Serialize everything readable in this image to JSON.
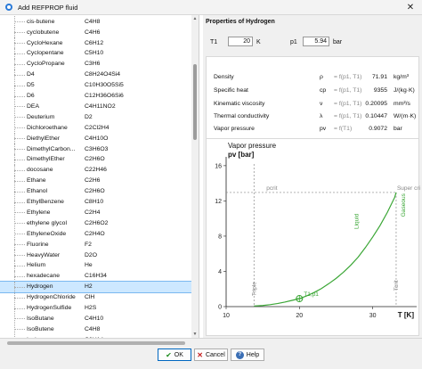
{
  "window": {
    "title": "Add REFPROP fluid",
    "close_glyph": "✕"
  },
  "fluids": [
    {
      "name": "cis-butene",
      "formula": "C4H8"
    },
    {
      "name": "cyclobutene",
      "formula": "C4H6"
    },
    {
      "name": "CycloHexane",
      "formula": "C6H12"
    },
    {
      "name": "Cyclopentane",
      "formula": "C5H10"
    },
    {
      "name": "CycloPropane",
      "formula": "C3H6"
    },
    {
      "name": "D4",
      "formula": "C8H24O4Si4"
    },
    {
      "name": "D5",
      "formula": "C10H30O5Si5"
    },
    {
      "name": "D6",
      "formula": "C12H36O6Si6"
    },
    {
      "name": "DEA",
      "formula": "C4H11NO2"
    },
    {
      "name": "Deuterium",
      "formula": "D2"
    },
    {
      "name": "Dichloroethane",
      "formula": "C2Cl2H4"
    },
    {
      "name": "DiethylEther",
      "formula": "C4H10O"
    },
    {
      "name": "DimethylCarbon...",
      "formula": "C3H6O3"
    },
    {
      "name": "DimethylEther",
      "formula": "C2H6O"
    },
    {
      "name": "docosane",
      "formula": "C22H46"
    },
    {
      "name": "Ethane",
      "formula": "C2H6"
    },
    {
      "name": "Ethanol",
      "formula": "C2H6O"
    },
    {
      "name": "EthylBenzene",
      "formula": "C8H10"
    },
    {
      "name": "Ethylene",
      "formula": "C2H4"
    },
    {
      "name": "ethylene glycol",
      "formula": "C2H6O2"
    },
    {
      "name": "EthyleneOxide",
      "formula": "C2H4O"
    },
    {
      "name": "Fluorine",
      "formula": "F2"
    },
    {
      "name": "HeavyWater",
      "formula": "D2O"
    },
    {
      "name": "Helium",
      "formula": "He"
    },
    {
      "name": "hexadecane",
      "formula": "C16H34"
    },
    {
      "name": "Hydrogen",
      "formula": "H2"
    },
    {
      "name": "HydrogenChloride",
      "formula": "ClH"
    },
    {
      "name": "HydrogenSulfide",
      "formula": "H2S"
    },
    {
      "name": "IsoButane",
      "formula": "C4H10"
    },
    {
      "name": "IsoButene",
      "formula": "C4H8"
    },
    {
      "name": "Isohexane",
      "formula": "C6H14"
    }
  ],
  "selected_fluid": "Hydrogen",
  "properties": {
    "title": "Properties of Hydrogen",
    "t1": {
      "label": "T1",
      "value": "20",
      "unit": "K"
    },
    "p1": {
      "label": "p1",
      "value": "5.94",
      "unit": "bar"
    },
    "rows": [
      {
        "name": "Density",
        "symbol": "ρ",
        "fn": "= f(p1, T1)",
        "value": "71.91",
        "unit": "kg/m³"
      },
      {
        "name": "Specific heat",
        "symbol": "cp",
        "fn": "= f(p1, T1)",
        "value": "9355",
        "unit": "J/(kg·K)"
      },
      {
        "name": "Kinematic viscosity",
        "symbol": "ν",
        "fn": "= f(p1, T1)",
        "value": "0.20095",
        "unit": "mm²/s"
      },
      {
        "name": "Thermal conductivity",
        "symbol": "λ",
        "fn": "= f(p1, T1)",
        "value": "0.10447",
        "unit": "W/(m·K)"
      },
      {
        "name": "Vapor pressure",
        "symbol": "pv",
        "fn": "= f(T1)",
        "value": "0.9072",
        "unit": "bar"
      }
    ]
  },
  "chart_data": {
    "type": "line",
    "title": "Vapor pressure",
    "ylabel": "pv [bar]",
    "xlabel": "T [K]",
    "xlim": [
      10,
      36
    ],
    "ylim": [
      0,
      17
    ],
    "xticks": [
      10,
      20,
      30
    ],
    "yticks": [
      0,
      4,
      8,
      12,
      16
    ],
    "grid": false,
    "series": [
      {
        "name": "",
        "color": "#3aa635",
        "x": [
          13.8,
          15,
          16,
          17,
          18,
          19,
          20,
          21,
          22,
          23,
          24,
          25,
          26,
          27,
          28,
          29,
          30,
          31,
          32,
          33,
          33.2
        ],
        "y": [
          0.07,
          0.13,
          0.22,
          0.35,
          0.51,
          0.71,
          0.91,
          1.22,
          1.6,
          2.05,
          2.6,
          3.2,
          3.9,
          4.7,
          5.6,
          6.7,
          7.9,
          9.2,
          10.7,
          12.4,
          12.96
        ]
      }
    ],
    "annotations": {
      "pcrit_label": "pcrit",
      "supercritical_label": "Super critical",
      "liquid_label": "Liquid",
      "gaseous_label": "Gaseous",
      "triple_label": "Triple",
      "tcrit_label": "Tcrit",
      "point_label": "T1,p1",
      "point": {
        "x": 20,
        "y": 0.9072
      },
      "pcrit_value": 12.96,
      "tcrit_value": 33.2,
      "triple_value": 13.8
    }
  },
  "buttons": {
    "ok": "OK",
    "cancel": "Cancel",
    "help": "Help"
  }
}
